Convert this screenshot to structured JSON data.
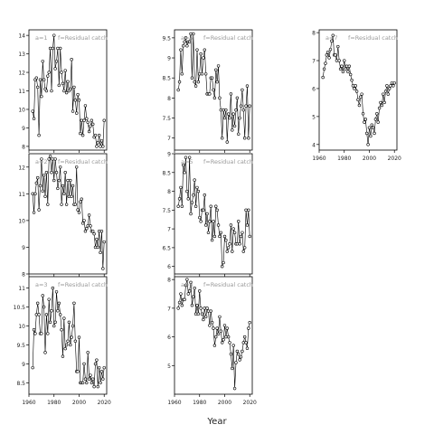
{
  "chart_data": {
    "type": "line",
    "layout": "faceted-grid",
    "xlabel": "Year",
    "ylabel": "",
    "points": "open circles joined by thin black line",
    "grid": false,
    "xlim": [
      1960,
      2022
    ],
    "xticks": [
      1960,
      1980,
      2000,
      2020
    ],
    "panels": [
      {
        "label_a": "a=1",
        "label_f": "f=Residual catch",
        "ylim": [
          7.8,
          14.3
        ],
        "yticks": [
          8,
          9,
          10,
          11,
          12,
          13,
          14
        ],
        "x": [
          1963,
          1964,
          1965,
          1966,
          1967,
          1968,
          1969,
          1970,
          1971,
          1972,
          1973,
          1974,
          1975,
          1976,
          1977,
          1978,
          1979,
          1980,
          1981,
          1982,
          1983,
          1984,
          1985,
          1986,
          1987,
          1988,
          1989,
          1990,
          1991,
          1992,
          1993,
          1994,
          1995,
          1996,
          1997,
          1998,
          1999,
          2000,
          2001,
          2002,
          2003,
          2004,
          2005,
          2006,
          2007,
          2008,
          2009,
          2010,
          2011,
          2012,
          2013,
          2014,
          2015,
          2016,
          2017,
          2018,
          2019,
          2020
        ],
        "values": [
          9.9,
          9.5,
          11.6,
          11.7,
          11.2,
          8.6,
          11.6,
          10.7,
          12.6,
          11.6,
          11.1,
          11.0,
          11.8,
          12.0,
          13.3,
          11.0,
          13.3,
          14.0,
          12.2,
          12.6,
          13.3,
          11.3,
          13.3,
          12.0,
          11.4,
          11.0,
          12.1,
          10.9,
          11.5,
          11.0,
          11.1,
          12.7,
          9.9,
          11.2,
          10.5,
          9.8,
          10.8,
          10.5,
          8.7,
          9.4,
          8.6,
          9.4,
          10.2,
          9.5,
          9.3,
          8.8,
          9.1,
          9.4,
          9.2,
          8.5,
          8.6,
          8.0,
          8.2,
          8.6,
          8.0,
          8.3,
          8.0,
          9.4
        ]
      },
      {
        "label_a": "a=2",
        "label_f": "f=Residual catch",
        "ylim": [
          8.0,
          12.5
        ],
        "yticks": [
          8,
          9,
          10,
          11,
          12
        ],
        "x": [
          1963,
          1964,
          1965,
          1966,
          1967,
          1968,
          1969,
          1970,
          1971,
          1972,
          1973,
          1974,
          1975,
          1976,
          1977,
          1978,
          1979,
          1980,
          1981,
          1982,
          1983,
          1984,
          1985,
          1986,
          1987,
          1988,
          1989,
          1990,
          1991,
          1992,
          1993,
          1994,
          1995,
          1996,
          1997,
          1998,
          1999,
          2000,
          2001,
          2002,
          2003,
          2004,
          2005,
          2006,
          2007,
          2008,
          2009,
          2010,
          2011,
          2012,
          2013,
          2014,
          2015,
          2016,
          2017,
          2018,
          2019,
          2020
        ],
        "values": [
          11.0,
          10.3,
          11.0,
          11.4,
          11.6,
          10.4,
          11.3,
          12.3,
          11.1,
          11.7,
          10.9,
          11.8,
          10.6,
          12.3,
          12.4,
          11.8,
          12.3,
          11.5,
          12.3,
          11.8,
          11.2,
          11.5,
          12.0,
          10.6,
          11.3,
          11.0,
          11.8,
          10.6,
          11.5,
          10.9,
          11.5,
          10.9,
          11.3,
          10.6,
          10.6,
          12.0,
          10.4,
          10.3,
          10.7,
          10.8,
          9.9,
          10.0,
          9.6,
          9.7,
          9.8,
          10.2,
          9.8,
          9.6,
          9.6,
          9.5,
          9.0,
          9.3,
          9.0,
          9.6,
          8.8,
          9.6,
          8.2,
          9.2
        ]
      },
      {
        "label_a": "a=3",
        "label_f": "f=Residual catch",
        "ylim": [
          8.2,
          11.3
        ],
        "yticks": [
          8.5,
          9.0,
          9.5,
          10.0,
          10.5,
          11.0
        ],
        "x": [
          1963,
          1964,
          1965,
          1966,
          1967,
          1968,
          1969,
          1970,
          1971,
          1972,
          1973,
          1974,
          1975,
          1976,
          1977,
          1978,
          1979,
          1980,
          1981,
          1982,
          1983,
          1984,
          1985,
          1986,
          1987,
          1988,
          1989,
          1990,
          1991,
          1992,
          1993,
          1994,
          1995,
          1996,
          1997,
          1998,
          1999,
          2000,
          2001,
          2002,
          2003,
          2004,
          2005,
          2006,
          2007,
          2008,
          2009,
          2010,
          2011,
          2012,
          2013,
          2014,
          2015,
          2016,
          2017,
          2018,
          2019,
          2020
        ],
        "values": [
          8.9,
          9.9,
          9.8,
          10.3,
          10.6,
          10.3,
          9.8,
          9.8,
          10.8,
          10.5,
          9.3,
          10.3,
          9.8,
          10.7,
          10.1,
          10.4,
          11.0,
          10.0,
          10.1,
          10.9,
          10.4,
          10.6,
          10.3,
          9.9,
          9.2,
          10.2,
          9.4,
          9.5,
          9.6,
          10.1,
          9.5,
          9.7,
          10.0,
          10.6,
          9.6,
          8.8,
          8.8,
          9.7,
          8.5,
          8.5,
          8.5,
          9.0,
          8.6,
          8.5,
          9.3,
          8.6,
          8.7,
          8.5,
          8.6,
          8.4,
          9.0,
          9.1,
          8.4,
          8.9,
          8.5,
          8.8,
          8.6,
          8.9
        ]
      },
      {
        "label_a": "a=4",
        "label_f": "f=Residual catch",
        "ylim": [
          6.7,
          9.7
        ],
        "yticks": [
          7.0,
          7.5,
          8.0,
          8.5,
          9.0,
          9.5
        ],
        "x": [
          1963,
          1964,
          1965,
          1966,
          1967,
          1968,
          1969,
          1970,
          1971,
          1972,
          1973,
          1974,
          1975,
          1976,
          1977,
          1978,
          1979,
          1980,
          1981,
          1982,
          1983,
          1984,
          1985,
          1986,
          1987,
          1988,
          1989,
          1990,
          1991,
          1992,
          1993,
          1994,
          1995,
          1996,
          1997,
          1998,
          1999,
          2000,
          2001,
          2002,
          2003,
          2004,
          2005,
          2006,
          2007,
          2008,
          2009,
          2010,
          2011,
          2012,
          2013,
          2014,
          2015,
          2016,
          2017,
          2018,
          2019,
          2020
        ],
        "values": [
          8.2,
          8.4,
          9.2,
          8.6,
          9.3,
          9.4,
          9.5,
          9.3,
          9.4,
          9.4,
          9.6,
          8.5,
          9.6,
          8.4,
          8.3,
          9.2,
          8.4,
          8.6,
          9.1,
          8.6,
          9.0,
          9.2,
          8.6,
          8.1,
          8.1,
          8.1,
          8.5,
          8.5,
          8.2,
          8.0,
          8.7,
          8.4,
          8.8,
          8.0,
          7.7,
          7.0,
          7.7,
          7.5,
          7.7,
          6.9,
          7.6,
          7.5,
          8.1,
          7.2,
          7.6,
          7.3,
          7.7,
          8.0,
          7.1,
          7.5,
          7.8,
          8.2,
          7.7,
          7.0,
          7.8,
          8.3,
          7.0,
          7.8
        ]
      },
      {
        "label_a": "a=5",
        "label_f": "f=Residual catch",
        "ylim": [
          5.8,
          9.0
        ],
        "yticks": [
          6.0,
          6.5,
          7.0,
          7.5,
          8.0,
          8.5,
          9.0
        ],
        "x": [
          1963,
          1964,
          1965,
          1966,
          1967,
          1968,
          1969,
          1970,
          1971,
          1972,
          1973,
          1974,
          1975,
          1976,
          1977,
          1978,
          1979,
          1980,
          1981,
          1982,
          1983,
          1984,
          1985,
          1986,
          1987,
          1988,
          1989,
          1990,
          1991,
          1992,
          1993,
          1994,
          1995,
          1996,
          1997,
          1998,
          1999,
          2000,
          2001,
          2002,
          2003,
          2004,
          2005,
          2006,
          2007,
          2008,
          2009,
          2010,
          2011,
          2012,
          2013,
          2014,
          2015,
          2016,
          2017,
          2018,
          2019,
          2020
        ],
        "values": [
          7.6,
          7.8,
          8.1,
          7.6,
          8.7,
          8.5,
          8.9,
          8.0,
          7.8,
          8.9,
          7.4,
          7.7,
          7.9,
          8.3,
          7.6,
          8.1,
          8.0,
          7.3,
          7.2,
          7.5,
          7.5,
          7.9,
          7.1,
          7.4,
          6.9,
          7.2,
          7.6,
          6.7,
          7.2,
          6.8,
          7.6,
          7.5,
          7.1,
          6.8,
          6.9,
          6.0,
          6.1,
          6.8,
          6.7,
          6.4,
          6.5,
          6.6,
          7.1,
          6.4,
          7.0,
          6.9,
          6.6,
          6.6,
          7.2,
          6.6,
          6.8,
          6.9,
          6.4,
          6.5,
          7.5,
          7.1,
          7.5,
          6.8
        ]
      },
      {
        "label_a": "a=6",
        "label_f": "f=Residual catch",
        "ylim": [
          4.0,
          8.1
        ],
        "yticks": [
          5,
          6,
          7,
          8
        ],
        "x": [
          1963,
          1964,
          1965,
          1966,
          1967,
          1968,
          1969,
          1970,
          1971,
          1972,
          1973,
          1974,
          1975,
          1976,
          1977,
          1978,
          1979,
          1980,
          1981,
          1982,
          1983,
          1984,
          1985,
          1986,
          1987,
          1988,
          1989,
          1990,
          1991,
          1992,
          1993,
          1994,
          1995,
          1996,
          1997,
          1998,
          1999,
          2000,
          2001,
          2002,
          2003,
          2004,
          2005,
          2006,
          2007,
          2008,
          2009,
          2010,
          2011,
          2012,
          2013,
          2014,
          2015,
          2016,
          2017,
          2018,
          2019,
          2020
        ],
        "values": [
          7.0,
          7.2,
          7.5,
          7.1,
          7.3,
          7.3,
          7.8,
          8.0,
          7.5,
          7.6,
          7.9,
          7.1,
          7.4,
          7.7,
          6.8,
          7.1,
          6.8,
          7.6,
          7.0,
          6.8,
          6.6,
          7.0,
          6.7,
          7.0,
          6.9,
          6.4,
          6.9,
          6.5,
          6.3,
          5.7,
          6.0,
          6.3,
          6.1,
          6.7,
          6.2,
          5.8,
          5.9,
          6.4,
          6.0,
          6.3,
          6.0,
          5.8,
          5.4,
          4.9,
          5.7,
          4.2,
          5.1,
          5.5,
          5.4,
          5.2,
          5.3,
          5.5,
          5.8,
          6.0,
          5.8,
          5.6,
          6.3,
          6.5
        ]
      },
      {
        "label_a": "a=7",
        "label_f": "f=Residual catch",
        "ylim": [
          3.8,
          8.1
        ],
        "yticks": [
          4,
          5,
          6,
          7,
          8
        ],
        "x": [
          1963,
          1964,
          1965,
          1966,
          1967,
          1968,
          1969,
          1970,
          1971,
          1972,
          1973,
          1974,
          1975,
          1976,
          1977,
          1978,
          1979,
          1980,
          1981,
          1982,
          1983,
          1984,
          1985,
          1986,
          1987,
          1988,
          1989,
          1990,
          1991,
          1992,
          1993,
          1994,
          1995,
          1996,
          1997,
          1998,
          1999,
          2000,
          2001,
          2002,
          2003,
          2004,
          2005,
          2006,
          2007,
          2008,
          2009,
          2010,
          2011,
          2012,
          2013,
          2014,
          2015,
          2016,
          2017,
          2018,
          2019,
          2020
        ],
        "values": [
          6.4,
          6.7,
          6.9,
          7.2,
          7.3,
          7.1,
          7.4,
          7.7,
          7.9,
          7.2,
          7.2,
          7.0,
          7.5,
          7.0,
          6.7,
          6.8,
          6.6,
          7.0,
          6.7,
          6.8,
          6.6,
          6.8,
          6.5,
          6.3,
          6.1,
          6.0,
          6.1,
          5.9,
          5.6,
          5.4,
          5.7,
          5.8,
          5.1,
          4.8,
          4.9,
          4.4,
          4.0,
          4.6,
          4.3,
          4.7,
          4.6,
          4.4,
          4.9,
          5.1,
          4.8,
          5.3,
          5.5,
          5.4,
          5.8,
          5.5,
          5.9,
          6.1,
          5.8,
          6.0,
          6.1,
          6.2,
          6.1,
          6.2
        ]
      }
    ]
  }
}
